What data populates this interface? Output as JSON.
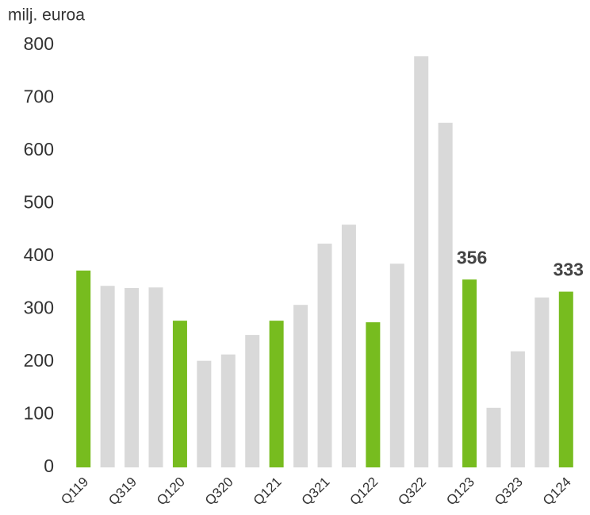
{
  "chart_data": {
    "type": "bar",
    "ylabel": "milj. euroa",
    "categories": [
      "Q119",
      null,
      "Q319",
      null,
      "Q120",
      null,
      "Q320",
      null,
      "Q121",
      null,
      "Q321",
      null,
      "Q122",
      null,
      "Q322",
      null,
      "Q123",
      null,
      "Q323",
      null,
      "Q124"
    ],
    "values": [
      373,
      344,
      340,
      341,
      278,
      202,
      214,
      251,
      278,
      308,
      424,
      460,
      275,
      386,
      779,
      653,
      356,
      113,
      220,
      322,
      333
    ],
    "value_labels": [
      null,
      null,
      null,
      null,
      null,
      null,
      null,
      null,
      null,
      null,
      null,
      null,
      null,
      null,
      null,
      null,
      "356",
      null,
      null,
      null,
      "333"
    ],
    "colors": [
      "#77bc1f",
      "#d9d9d9",
      "#d9d9d9",
      "#d9d9d9",
      "#77bc1f",
      "#d9d9d9",
      "#d9d9d9",
      "#d9d9d9",
      "#77bc1f",
      "#d9d9d9",
      "#d9d9d9",
      "#d9d9d9",
      "#77bc1f",
      "#d9d9d9",
      "#d9d9d9",
      "#d9d9d9",
      "#77bc1f",
      "#d9d9d9",
      "#d9d9d9",
      "#d9d9d9",
      "#77bc1f"
    ],
    "ylim": [
      0,
      800
    ],
    "yticks": [
      0,
      100,
      200,
      300,
      400,
      500,
      600,
      700,
      800
    ],
    "grid": false
  }
}
